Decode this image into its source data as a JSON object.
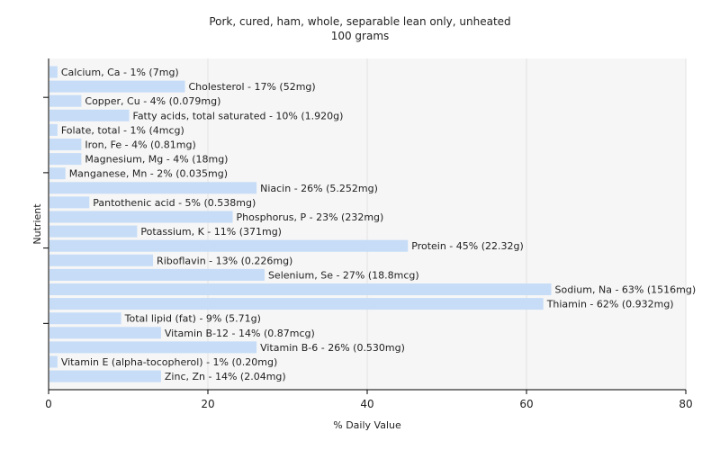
{
  "chart_data": {
    "type": "bar",
    "orientation": "horizontal",
    "title": "Pork, cured, ham, whole, separable lean only, unheated",
    "subtitle": "100 grams",
    "xlabel": "% Daily Value",
    "ylabel": "Nutrient",
    "xlim": [
      0,
      80
    ],
    "xticks": [
      0,
      20,
      40,
      60,
      80
    ],
    "grid": true,
    "bar_color": "#c6dcf7",
    "categories": [
      "Calcium, Ca",
      "Cholesterol",
      "Copper, Cu",
      "Fatty acids, total saturated",
      "Folate, total",
      "Iron, Fe",
      "Magnesium, Mg",
      "Manganese, Mn",
      "Niacin",
      "Pantothenic acid",
      "Phosphorus, P",
      "Potassium, K",
      "Protein",
      "Riboflavin",
      "Selenium, Se",
      "Sodium, Na",
      "Thiamin",
      "Total lipid (fat)",
      "Vitamin B-12",
      "Vitamin B-6",
      "Vitamin E (alpha-tocopherol)",
      "Zinc, Zn"
    ],
    "values": [
      1,
      17,
      4,
      10,
      1,
      4,
      4,
      2,
      26,
      5,
      23,
      11,
      45,
      13,
      27,
      63,
      62,
      9,
      14,
      26,
      1,
      14
    ],
    "labels": [
      "Calcium, Ca - 1% (7mg)",
      "Cholesterol - 17% (52mg)",
      "Copper, Cu - 4% (0.079mg)",
      "Fatty acids, total saturated - 10% (1.920g)",
      "Folate, total - 1% (4mcg)",
      "Iron, Fe - 4% (0.81mg)",
      "Magnesium, Mg - 4% (18mg)",
      "Manganese, Mn - 2% (0.035mg)",
      "Niacin - 26% (5.252mg)",
      "Pantothenic acid - 5% (0.538mg)",
      "Phosphorus, P - 23% (232mg)",
      "Potassium, K - 11% (371mg)",
      "Protein - 45% (22.32g)",
      "Riboflavin - 13% (0.226mg)",
      "Selenium, Se - 27% (18.8mcg)",
      "Sodium, Na - 63% (1516mg)",
      "Thiamin - 62% (0.932mg)",
      "Total lipid (fat) - 9% (5.71g)",
      "Vitamin B-12 - 14% (0.87mcg)",
      "Vitamin B-6 - 26% (0.530mg)",
      "Vitamin E (alpha-tocopherol) - 1% (0.20mg)",
      "Zinc, Zn - 14% (2.04mg)"
    ]
  }
}
